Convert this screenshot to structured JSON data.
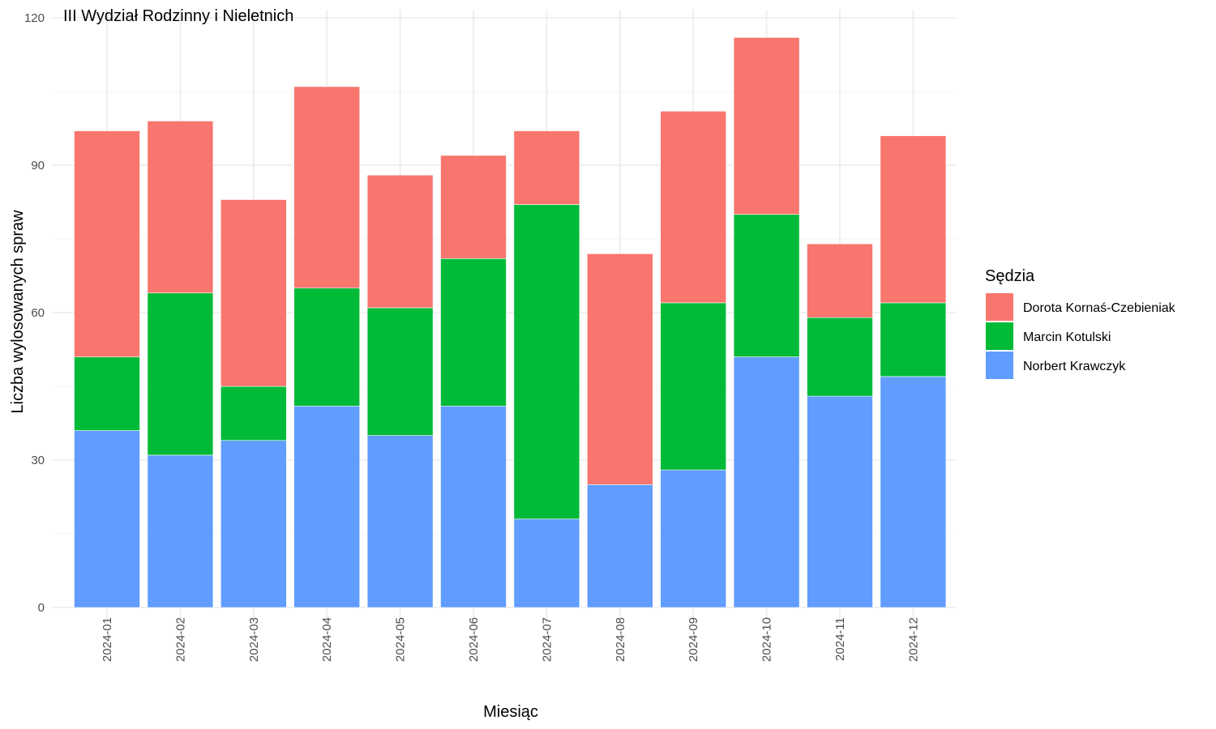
{
  "chart_data": {
    "type": "bar",
    "stacked": true,
    "title": "III Wydział Rodzinny i Nieletnich",
    "xlabel": "Miesiąc",
    "ylabel": "Liczba wylosowanych spraw",
    "ylim": [
      0,
      120
    ],
    "yticks": [
      "0",
      "30",
      "60",
      "90",
      "120"
    ],
    "grid": true,
    "legend_title": "Sędzia",
    "legend_position": "right",
    "categories": [
      "2024-01",
      "2024-02",
      "2024-03",
      "2024-04",
      "2024-05",
      "2024-06",
      "2024-07",
      "2024-08",
      "2024-09",
      "2024-10",
      "2024-11",
      "2024-12"
    ],
    "series": [
      {
        "name": "Dorota Kornaś-Czebieniak",
        "color": "#F8766D",
        "values": [
          46,
          35,
          38,
          41,
          27,
          21,
          15,
          47,
          39,
          36,
          15,
          34
        ]
      },
      {
        "name": "Marcin Kotulski",
        "color": "#00BA38",
        "values": [
          15,
          33,
          11,
          24,
          26,
          30,
          64,
          0,
          34,
          29,
          16,
          15
        ]
      },
      {
        "name": "Norbert Krawczyk",
        "color": "#619CFF",
        "values": [
          36,
          31,
          34,
          41,
          35,
          41,
          18,
          25,
          28,
          51,
          43,
          47
        ]
      }
    ],
    "stack_order_bottom_to_top": [
      "Norbert Krawczyk",
      "Marcin Kotulski",
      "Dorota Kornaś-Czebieniak"
    ]
  }
}
